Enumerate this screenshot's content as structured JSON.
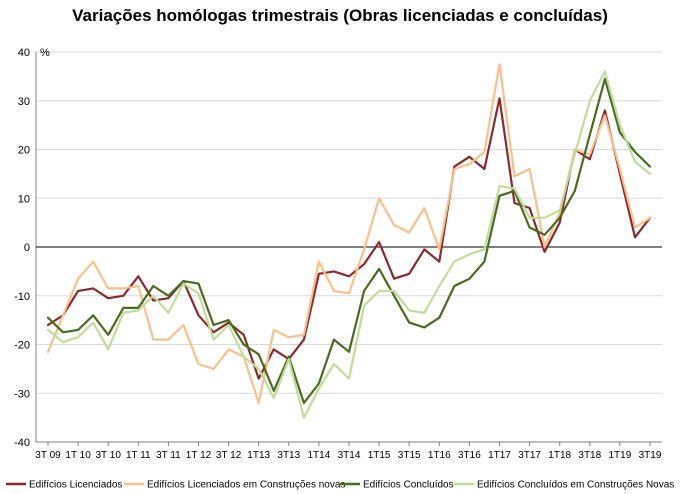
{
  "chart_data": {
    "type": "line",
    "title": "Variações homólogas trimestrais (Obras licenciadas e concluídas)",
    "ylabel": "%",
    "ylim": [
      -40,
      40
    ],
    "yticks": [
      -40,
      -30,
      -20,
      -10,
      0,
      10,
      20,
      30,
      40
    ],
    "grid": "horizontal",
    "legend_position": "bottom",
    "x_tick_labels": [
      "3T 09",
      "1T 10",
      "3T 10",
      "1T 11",
      "3T 11",
      "1T 12",
      "3T 12",
      "1T13",
      "3T13",
      "1T14",
      "3T14",
      "1T15",
      "3T15",
      "1T16",
      "3T16",
      "1T17",
      "3T17",
      "1T18",
      "3T18",
      "1T19",
      "3T19"
    ],
    "series": [
      {
        "name": "Edifícios Licenciados",
        "color": "#8B2A2E",
        "values": [
          -16,
          -14,
          -9,
          -8.5,
          -10.5,
          -10,
          -6,
          -11,
          -10.5,
          -7,
          -14,
          -17.5,
          -15.5,
          -18,
          -27,
          -21,
          -23,
          -19,
          -5.5,
          -5,
          -6,
          -3.5,
          1,
          -6.5,
          -5.5,
          -0.5,
          -3,
          16.5,
          18.5,
          16,
          30.5,
          9,
          8,
          -1,
          5,
          20,
          18,
          28,
          15,
          2,
          6
        ]
      },
      {
        "name": "Edifícios Licenciados em Construções novas",
        "color": "#F9C08C",
        "values": [
          -21.5,
          -14,
          -6.5,
          -3,
          -8.5,
          -8.5,
          -8,
          -19,
          -19,
          -16,
          -24,
          -25,
          -21,
          -22.5,
          -32,
          -17,
          -18.5,
          -18,
          -3,
          -9,
          -9.5,
          -0.5,
          10,
          4.5,
          3,
          8,
          -0.5,
          16,
          17,
          19.5,
          37.5,
          14.5,
          16,
          0,
          7,
          20,
          19,
          27,
          16,
          4,
          6
        ]
      },
      {
        "name": "Edifícios Concluídos",
        "color": "#4A6B22",
        "values": [
          -14.5,
          -17.5,
          -17,
          -14,
          -18,
          -12.5,
          -12.5,
          -8,
          -10,
          -7,
          -7.5,
          -16,
          -15,
          -20,
          -22,
          -29.5,
          -22.5,
          -32,
          -28,
          -19,
          -21.5,
          -9,
          -4.5,
          -10,
          -15.5,
          -16.5,
          -14.5,
          -8,
          -6.5,
          -3,
          10.5,
          11.5,
          4,
          2.5,
          6,
          11.5,
          23,
          34.5,
          23.5,
          19.5,
          16.5
        ]
      },
      {
        "name": "Edifícios Concluídos em Construções Novas",
        "color": "#BEDD99",
        "values": [
          -17,
          -19.5,
          -18.5,
          -15.5,
          -21,
          -13.5,
          -13,
          -10,
          -13.5,
          -7.5,
          -9.5,
          -19,
          -16,
          -22.5,
          -25,
          -31,
          -23,
          -35,
          -29,
          -24,
          -27,
          -12,
          -9,
          -9,
          -13,
          -13.5,
          -8,
          -3,
          -1.5,
          -0.5,
          12.5,
          12,
          6,
          6,
          7.5,
          19,
          30,
          36,
          25,
          17.5,
          15
        ]
      }
    ]
  }
}
